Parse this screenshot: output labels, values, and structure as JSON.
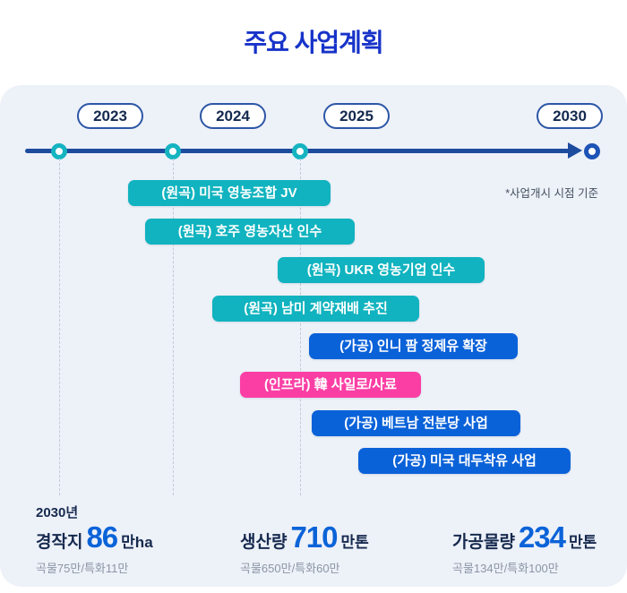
{
  "title": "주요 사업계획",
  "note": "*사업개시 시점 기준",
  "timeline": {
    "years": [
      "2023",
      "2024",
      "2025",
      "2030"
    ]
  },
  "colors": {
    "title": "#1733c9",
    "timeline_line": "#1d4c9f",
    "node_teal": "#14b4c0",
    "bar_teal": "#10b3bf",
    "bar_blue": "#0a62d9",
    "bar_pink": "#fb3ea4",
    "stat_value_blue": "#0b63d8",
    "panel_bg": "#edf1f8"
  },
  "bars": [
    {
      "label": "(원곡) 미국 영농조합 JV",
      "category": "teal"
    },
    {
      "label": "(원곡) 호주 영농자산 인수",
      "category": "teal"
    },
    {
      "label": "(원곡) UKR 영농기업 인수",
      "category": "teal"
    },
    {
      "label": "(원곡) 남미 계약재배 추진",
      "category": "teal"
    },
    {
      "label": "(가공) 인니 팜 정제유 확장",
      "category": "blue"
    },
    {
      "label": "(인프라) 韓 사일로/사료",
      "category": "pink"
    },
    {
      "label": "(가공) 베트남 전분당 사업",
      "category": "blue"
    },
    {
      "label": "(가공) 미국 대두착유 사업",
      "category": "blue"
    }
  ],
  "stats": {
    "year_label": "2030년",
    "items": [
      {
        "label": "경작지",
        "value": "86",
        "unit": "만ha",
        "detail": "곡물75만/특화11만"
      },
      {
        "label": "생산량",
        "value": "710",
        "unit": "만톤",
        "detail": "곡물650만/특화60만"
      },
      {
        "label": "가공물량",
        "value": "234",
        "unit": "만톤",
        "detail": "곡물134만/특화100만"
      }
    ]
  }
}
